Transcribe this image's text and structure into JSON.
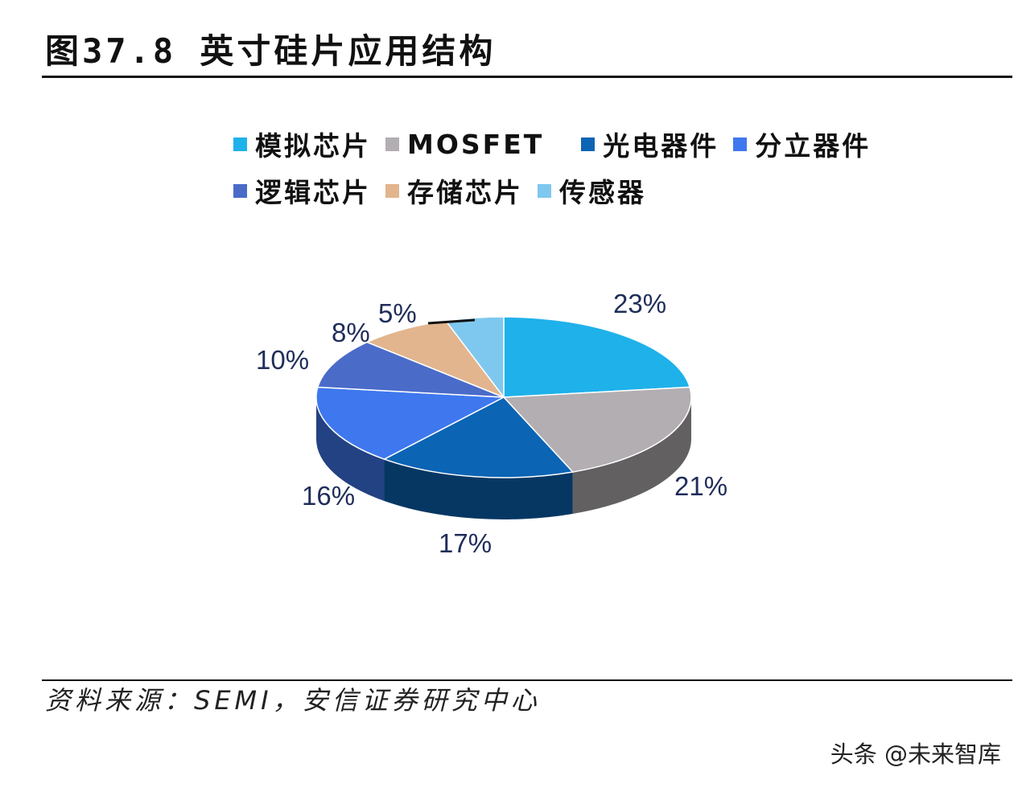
{
  "title": "图37.8 英寸硅片应用结构",
  "source": "资料来源：SEMI，安信证券研究中心",
  "watermark": "头条 @未来智库",
  "chart_data": {
    "type": "pie",
    "title": "图37.8 英寸硅片应用结构",
    "legend_placement": "top",
    "categories": [
      "模拟芯片",
      "MOSFET",
      "光电器件",
      "分立器件",
      "逻辑芯片",
      "存储芯片",
      "传感器"
    ],
    "values": [
      23,
      21,
      17,
      16,
      10,
      8,
      5
    ],
    "labels": [
      "23%",
      "21%",
      "17%",
      "16%",
      "10%",
      "8%",
      "5%"
    ],
    "colors": [
      "#1fb1ea",
      "#b3aeb1",
      "#0b64b4",
      "#3f78ee",
      "#4a6bc8",
      "#e2b58e",
      "#7ec8ef"
    ]
  }
}
